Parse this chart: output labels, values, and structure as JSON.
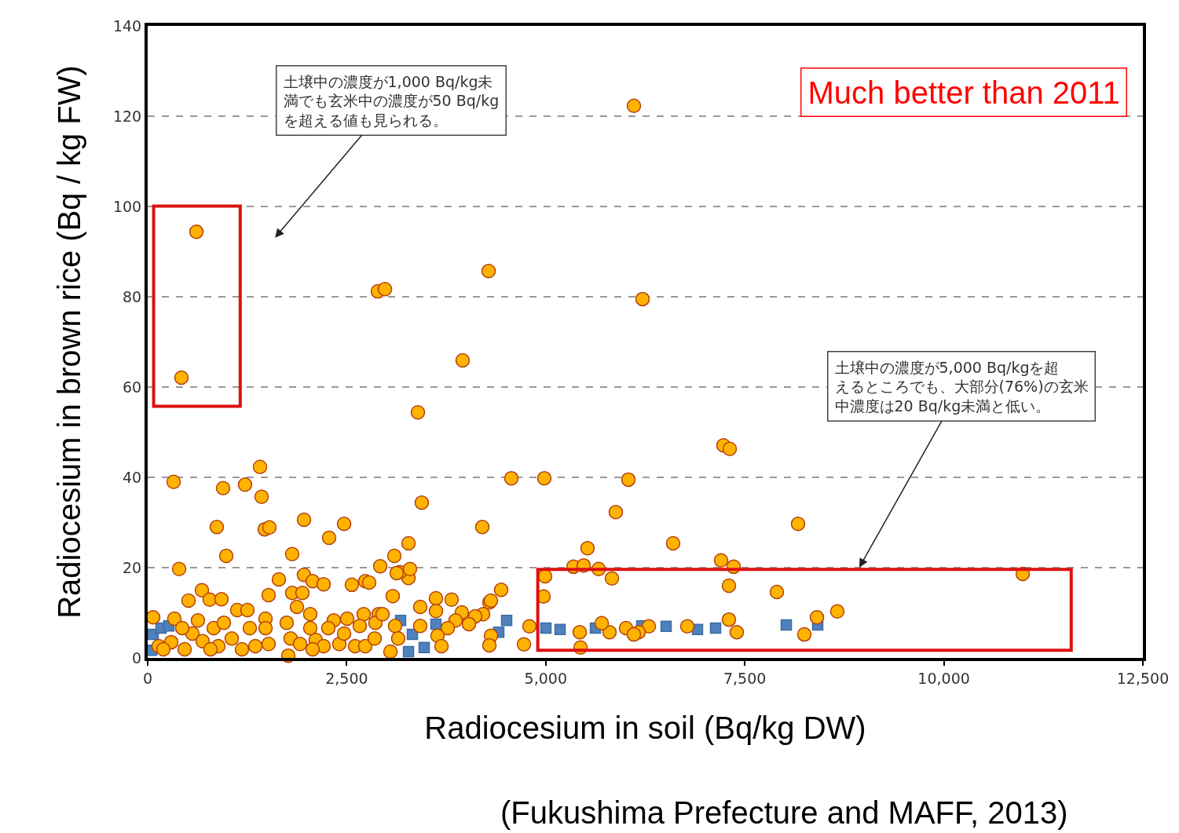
{
  "chart_data": {
    "type": "scatter",
    "xlabel": "Radiocesium in soil (Bq/kg DW)",
    "ylabel": "Radiocesium in brown rice (Bq / kg FW)",
    "xlim": [
      0,
      12500
    ],
    "ylim": [
      0,
      140
    ],
    "xticks": [
      0,
      {
        "value": 2500,
        "label": "2,500"
      },
      {
        "value": 5000,
        "label": "5,000"
      },
      {
        "value": 7500,
        "label": "7,500"
      },
      {
        "value": 10000,
        "label": "10,000"
      },
      {
        "value": 12500,
        "label": "12,500"
      }
    ],
    "yticks": [
      0,
      20,
      40,
      60,
      80,
      100,
      120,
      140
    ],
    "grid": "y",
    "annotations": [
      "土壌中の濃度が1,000 Bq/kg未満でも玄米中の濃度が50 Bq/kgを超える値も見られる。",
      "土壌中の濃度が5,000 Bq/kgを超えるところでも、大部分(76%)の玄米中濃度は20 Bq/kg未満と低い。",
      "Much better than 2011",
      "(Fukushima Prefecture and MAFF, 2013)"
    ],
    "series": [
      {
        "color": "#4f81bd",
        "marker": "square",
        "x": [
          49,
          69,
          168,
          266,
          3177,
          3325,
          3473,
          3621,
          3276,
          4509,
          4410,
          5002,
          5180,
          5624,
          6206,
          6512,
          6906,
          7133,
          8021,
          8416
        ],
        "values": [
          1.7,
          5.2,
          6.6,
          7.1,
          8.3,
          5.2,
          2.3,
          7.5,
          1.4,
          8.3,
          5.7,
          6.6,
          6.3,
          6.6,
          7.1,
          7.0,
          6.3,
          6.6,
          7.3,
          7.3
        ]
      },
      {
        "color": "#ffb300",
        "marker": "circle",
        "x": [
          612,
          424,
          6107,
          4282,
          2891,
          2980,
          6216,
          3956,
          3394,
          326,
          947,
          1223,
          1411,
          1431,
          3443,
          4568,
          4982,
          6038,
          7232,
          7311,
          868,
          1470,
          1529,
          1964,
          2467,
          2279,
          987,
          1815,
          4203,
          5880,
          6600,
          8169,
          3276,
          2921,
          395,
          10991,
          5525,
          5348,
          5476,
          5664,
          5831,
          4992,
          4972,
          7202,
          7360,
          7301,
          7903,
          8662,
          8406,
          8248,
          7301,
          7399,
          6778,
          6295,
          6167,
          6009,
          6107,
          5801,
          5703,
          5427,
          5437,
          4726,
          4795,
          4440,
          4292,
          4312,
          4292,
          3049,
          3276,
          3167,
          3098,
          69,
          335,
          681,
          513,
          779,
          927,
          1125,
          1253,
          1480,
          1519,
          1648,
          1815,
          1944,
          1963,
          2072,
          2210,
          1875,
          2042,
          2338,
          2506,
          2565,
          2733,
          2713,
          2901,
          296,
          138,
          562,
          691,
          888,
          1056,
          1352,
          1519,
          1746,
          1796,
          1914,
          1766,
          2111,
          2210,
          2407,
          2605,
          2733,
          2861,
          631,
          829,
          957,
          1283,
          1480,
          2042,
          2269,
          2467,
          2664,
          434,
          197,
          464,
          789,
          1184,
          2072,
          3128,
          3295,
          3078,
          3423,
          3621,
          3621,
          3818,
          3946,
          4311,
          4213,
          4114,
          3868,
          3769,
          4035,
          3423,
          3641,
          3690,
          2950,
          3108,
          3147,
          2851,
          2782
        ],
        "values": [
          94.4,
          62.1,
          122.3,
          85.7,
          81.2,
          81.7,
          79.5,
          65.9,
          54.4,
          39.0,
          37.6,
          38.4,
          42.3,
          35.7,
          34.4,
          39.8,
          39.8,
          39.5,
          47.1,
          46.3,
          29.0,
          28.5,
          28.9,
          30.6,
          29.7,
          26.6,
          22.6,
          23.0,
          29.0,
          32.3,
          25.4,
          29.7,
          25.4,
          20.3,
          19.7,
          18.6,
          24.3,
          20.2,
          20.5,
          19.7,
          17.6,
          18.1,
          13.6,
          21.6,
          20.2,
          16.0,
          14.6,
          10.3,
          9.0,
          5.2,
          8.5,
          5.7,
          7.0,
          7.0,
          5.7,
          6.6,
          5.2,
          5.7,
          7.7,
          5.7,
          2.3,
          3.0,
          7.0,
          15.1,
          12.3,
          4.9,
          2.8,
          1.4,
          17.7,
          19.0,
          22.6,
          9.0,
          8.7,
          15.0,
          12.7,
          12.9,
          13.0,
          10.6,
          10.6,
          8.7,
          13.9,
          17.4,
          14.4,
          14.4,
          18.4,
          17.0,
          16.3,
          11.3,
          9.7,
          8.3,
          8.7,
          16.2,
          17.0,
          9.7,
          9.7,
          3.5,
          2.6,
          5.4,
          3.7,
          2.6,
          4.3,
          2.6,
          3.1,
          7.8,
          4.3,
          3.1,
          0.5,
          4.0,
          2.6,
          3.1,
          2.6,
          2.6,
          7.8,
          8.3,
          6.6,
          7.8,
          6.6,
          6.6,
          6.6,
          6.6,
          5.4,
          7.1,
          6.6,
          1.9,
          1.9,
          1.9,
          1.9,
          1.9,
          18.8,
          19.7,
          13.7,
          11.3,
          13.2,
          10.4,
          12.9,
          10.1,
          12.7,
          9.7,
          9.2,
          8.3,
          6.6,
          7.5,
          7.1,
          4.9,
          2.6,
          9.7,
          7.1,
          4.3,
          4.3,
          16.7
        ]
      }
    ]
  }
}
